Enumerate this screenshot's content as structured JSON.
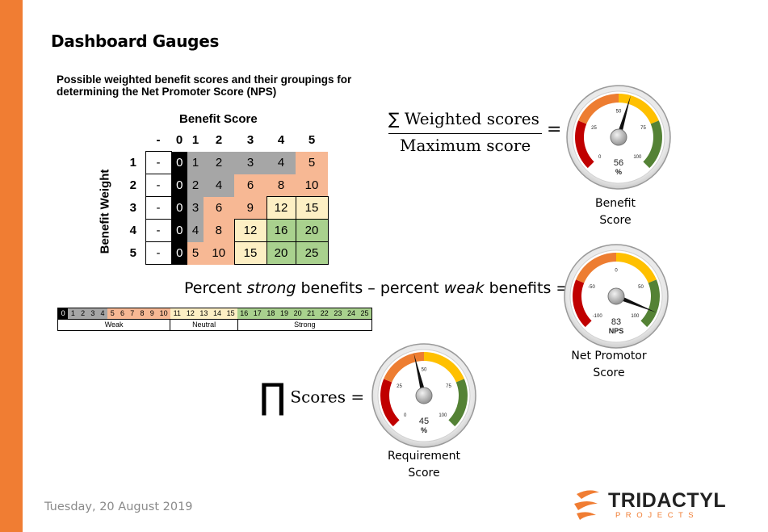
{
  "page": {
    "title": "Dashboard Gauges",
    "caption": "Possible weighted benefit scores and their groupings for determining the Net Promoter Score (NPS)",
    "date": "Tuesday, 20 August 2019",
    "accent_color": "#f07d33"
  },
  "matrix": {
    "col_header_title": "Benefit Score",
    "row_header_title": "Benefit Weight",
    "dash": "-",
    "columns": [
      "0",
      "1",
      "2",
      "3",
      "4",
      "5"
    ],
    "rows": [
      {
        "weight": "1",
        "values": [
          "0",
          "1",
          "2",
          "3",
          "4",
          "5"
        ]
      },
      {
        "weight": "2",
        "values": [
          "0",
          "2",
          "4",
          "6",
          "8",
          "10"
        ]
      },
      {
        "weight": "3",
        "values": [
          "0",
          "3",
          "6",
          "9",
          "12",
          "15"
        ]
      },
      {
        "weight": "4",
        "values": [
          "0",
          "4",
          "8",
          "12",
          "16",
          "20"
        ]
      },
      {
        "weight": "5",
        "values": [
          "0",
          "5",
          "10",
          "15",
          "20",
          "25"
        ]
      }
    ],
    "colors": {
      "zero": "#000000",
      "weak_low": "#a6a6a6",
      "weak_high": "#f7b894",
      "neutral": "#fdefc4",
      "strong": "#a9d18e"
    }
  },
  "scale": {
    "numbers": [
      "0",
      "1",
      "2",
      "3",
      "4",
      "5",
      "6",
      "7",
      "8",
      "9",
      "10",
      "11",
      "12",
      "13",
      "14",
      "15",
      "16",
      "17",
      "18",
      "19",
      "20",
      "21",
      "22",
      "23",
      "24",
      "25"
    ],
    "groups": [
      {
        "label": "Weak"
      },
      {
        "label": "Neutral"
      },
      {
        "label": "Strong"
      }
    ]
  },
  "formulas": {
    "benefit_numerator": "Weighted scores",
    "benefit_denominator": "Maximum score",
    "sum_symbol": "∑",
    "equals": "=",
    "nps_text_1": "Percent ",
    "nps_strong": "strong",
    "nps_text_2": " benefits – percent ",
    "nps_weak": "weak",
    "nps_text_3": " benefits =",
    "product_symbol": "∏",
    "requirement_text": "Scores ="
  },
  "gauges": [
    {
      "id": "benefit",
      "ticks": [
        "0",
        "25",
        "50",
        "75",
        "100"
      ],
      "value": 56,
      "value_text": "56",
      "unit": "%",
      "label_line1": "Benefit",
      "label_line2": "Score"
    },
    {
      "id": "nps",
      "ticks": [
        "-100",
        "-50",
        "0",
        "50",
        "100"
      ],
      "value": 83,
      "value_text": "83",
      "unit": "NPS",
      "label_line1": "Net Promotor",
      "label_line2": "Score"
    },
    {
      "id": "requirement",
      "ticks": [
        "0",
        "25",
        "50",
        "75",
        "100"
      ],
      "value": 45,
      "value_text": "45",
      "unit": "%",
      "label_line1": "Requirement",
      "label_line2": "Score"
    }
  ],
  "gauge_colors": {
    "red": "#c00000",
    "orange": "#ed7d31",
    "yellow": "#ffc000",
    "green": "#548235"
  },
  "logo": {
    "name": "TRIDACTYL",
    "sub": "P R O J E C T S",
    "color": "#f07d33"
  }
}
